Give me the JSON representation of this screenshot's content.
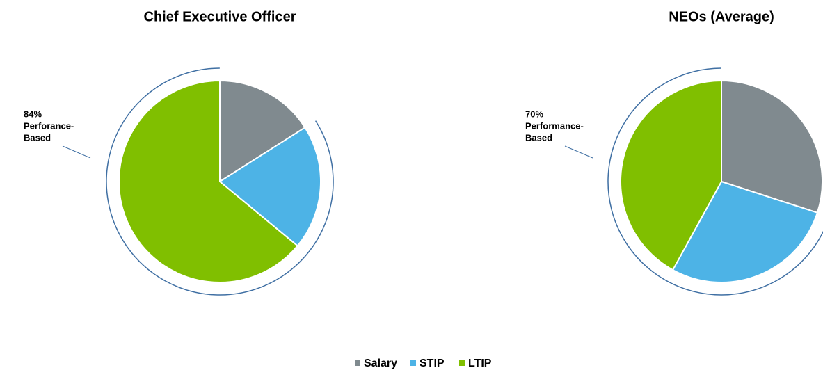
{
  "chart_data": [
    {
      "type": "pie",
      "title": "Chief Executive Officer",
      "categories": [
        "Salary",
        "STIP",
        "LTIP"
      ],
      "values": [
        16,
        20,
        64
      ],
      "colors": [
        "#808a8f",
        "#4db3e6",
        "#80bf00"
      ],
      "annotation": [
        "84%",
        "Perforance-",
        "Based"
      ]
    },
    {
      "type": "pie",
      "title": "NEOs (Average)",
      "categories": [
        "Salary",
        "STIP",
        "LTIP"
      ],
      "values": [
        30,
        28,
        42
      ],
      "colors": [
        "#808a8f",
        "#4db3e6",
        "#80bf00"
      ],
      "annotation": [
        "70%",
        "Performance-",
        "Based"
      ]
    }
  ]
}
